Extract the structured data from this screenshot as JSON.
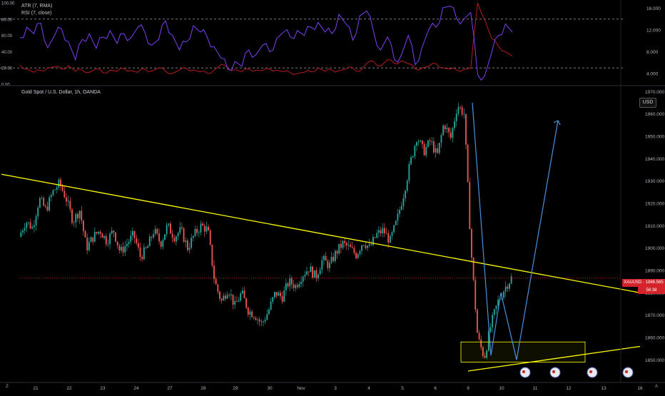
{
  "indicator_panel": {
    "legend": [
      "ATR (7, RMA)",
      "RSI (7, close)"
    ],
    "left_axis_ticks": [
      "100.00",
      "80.00",
      "60.00",
      "40.00",
      "20.00",
      "0.00"
    ],
    "right_axis_ticks": [
      "16.000",
      "12.000",
      "8.000",
      "4.000"
    ]
  },
  "main_panel": {
    "legend": "Gold Spot / U.S. Dollar, 1h, OANDA",
    "currency": "USD",
    "price_tag": "XAUUSD · 1886.565",
    "countdown": "56:38",
    "y_axis_ticks": [
      "1970.000",
      "1960.000",
      "1950.000",
      "1940.000",
      "1930.000",
      "1920.000",
      "1910.000",
      "1900.000",
      "1890.000",
      "1880.000",
      "1870.000",
      "1860.000",
      "1850.000"
    ],
    "x_axis_ticks": [
      "21",
      "22",
      "23",
      "24",
      "27",
      "28",
      "29",
      "30",
      "Nov",
      "3",
      "4",
      "5",
      "6",
      "9",
      "10",
      "11",
      "12",
      "13",
      "16"
    ]
  },
  "bottom_left_button": "Z",
  "bottom_right_button": "A",
  "colors": {
    "background": "#000000",
    "bull": "#26a69a",
    "bear": "#ef5350",
    "trendline": "#ffff00",
    "zone": "#ffff00",
    "pattern_line": "#2962ff",
    "arrow_line": "#4a90e2",
    "rsi": "#7e3ff2",
    "atr": "#b71c1c",
    "price_line": "#d5232b"
  },
  "chart_data": [
    {
      "type": "line",
      "title": "",
      "series": [
        {
          "name": "RSI (7, close)",
          "values": [
            57,
            70,
            62,
            75,
            45,
            60,
            68,
            52,
            30,
            55,
            62,
            44,
            58,
            66,
            50,
            62,
            57,
            70,
            64,
            48,
            55,
            78,
            60,
            42,
            52,
            72,
            64,
            58,
            46,
            32,
            18,
            28,
            22,
            42,
            36,
            48,
            40,
            56,
            64,
            58,
            66,
            60,
            70,
            76,
            64,
            62,
            86,
            74,
            54,
            84,
            90,
            64,
            42,
            58,
            30,
            36,
            60,
            24,
            46,
            68,
            70,
            94,
            96,
            80,
            80,
            88,
            12,
            10,
            38,
            60,
            74,
            64
          ]
        },
        {
          "name": "ATR (7, RMA)",
          "values": [
            5.5,
            4.8,
            4.2,
            4.5,
            5.0,
            5.2,
            4.8,
            5.4,
            4.4,
            4.6,
            4.2,
            4.8,
            4.1,
            4.6,
            4.4,
            4.9,
            4.5,
            4.2,
            4.8,
            4.4,
            5.0,
            4.4,
            4.0,
            4.6,
            4.9,
            4.6,
            4.3,
            4.0,
            4.6,
            5.6,
            4.9,
            4.7,
            4.3,
            4.8,
            4.6,
            4.5,
            4.8,
            4.6,
            4.3,
            4.1,
            4.0,
            4.2,
            4.3,
            5.0,
            4.4,
            4.6,
            4.5,
            4.8,
            5.0,
            4.4,
            5.8,
            6.2,
            5.3,
            6.5,
            5.8,
            6.3,
            5.8,
            4.8,
            5.0,
            5.3,
            5.8,
            5.0,
            4.8,
            4.6,
            4.7,
            5.0,
            17.0,
            14.0,
            10.5,
            9.0,
            8.0,
            7.2
          ]
        }
      ],
      "ylim_left": [
        0,
        100
      ],
      "ylim_right": [
        2,
        17
      ],
      "reference_lines": [
        20,
        80
      ],
      "legend": "top-left"
    },
    {
      "type": "candlestick",
      "title": "Gold Spot / U.S. Dollar, 1h, OANDA",
      "x_label_points": [
        "21",
        "22",
        "23",
        "24",
        "27",
        "28",
        "29",
        "30",
        "Nov",
        "3",
        "4",
        "5",
        "6",
        "9",
        "10",
        "11",
        "12",
        "13",
        "16"
      ],
      "close_path": [
        1905,
        1912,
        1909,
        1922,
        1917,
        1925,
        1929,
        1922,
        1912,
        1917,
        1900,
        1905,
        1908,
        1903,
        1908,
        1898,
        1902,
        1906,
        1896,
        1900,
        1908,
        1902,
        1910,
        1905,
        1908,
        1900,
        1906,
        1910,
        1908,
        1885,
        1876,
        1882,
        1874,
        1880,
        1872,
        1870,
        1866,
        1872,
        1880,
        1878,
        1885,
        1883,
        1888,
        1891,
        1887,
        1895,
        1892,
        1898,
        1902,
        1900,
        1897,
        1903,
        1900,
        1906,
        1908,
        1903,
        1912,
        1924,
        1938,
        1950,
        1943,
        1948,
        1941,
        1956,
        1949,
        1964,
        1960,
        1900,
        1860,
        1851,
        1866,
        1876,
        1882,
        1886.565
      ],
      "ylim": [
        1845,
        1972
      ],
      "last_price": 1886.565,
      "trendlines": [
        {
          "from": {
            "x_label": "20",
            "price": 1933
          },
          "to": {
            "x_label": "16",
            "price": 1880
          }
        },
        {
          "from": {
            "x_label": "9",
            "price": 1845
          },
          "to": {
            "x_label": "16",
            "price": 1856
          }
        }
      ],
      "demand_zone": {
        "price_top": 1858,
        "price_bottom": 1849
      },
      "projection": {
        "points": [
          {
            "x_label": "9",
            "price": 1965
          },
          {
            "x_label": "10",
            "price": 1852
          },
          {
            "x_label": "10",
            "price": 1880
          },
          {
            "x_label": "10",
            "price": 1850
          },
          {
            "x_label": "11",
            "price": 1957
          }
        ]
      },
      "legend": "top-left"
    }
  ]
}
